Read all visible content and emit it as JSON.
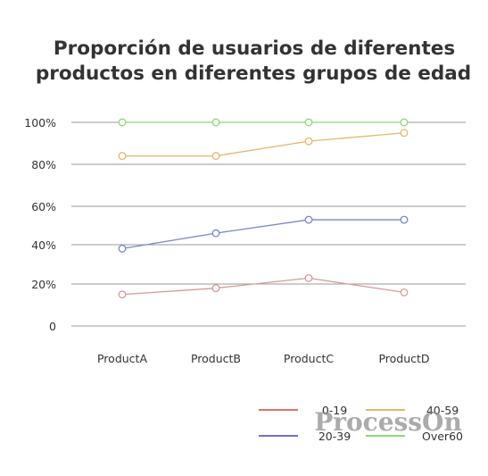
{
  "chart_data": {
    "type": "line",
    "title_lines": [
      "Proporción de usuarios de diferentes",
      "productos en diferentes grupos de edad"
    ],
    "categories": [
      "ProductA",
      "ProductB",
      "ProductC",
      "ProductD"
    ],
    "y_ticks": [
      {
        "value": 0,
        "label": "0"
      },
      {
        "value": 20,
        "label": "20%"
      },
      {
        "value": 40,
        "label": "40%"
      },
      {
        "value": 60,
        "label": "60%"
      },
      {
        "value": 80,
        "label": "80%"
      },
      {
        "value": 100,
        "label": "100%"
      }
    ],
    "ylim": [
      0,
      100
    ],
    "grid": true,
    "legend_position": "bottom-right",
    "series": [
      {
        "name": "0-19",
        "color": "#d99999",
        "legend_color": "#e0726f",
        "values": [
          15,
          18,
          23,
          16
        ]
      },
      {
        "name": "40-59",
        "color": "#e9b46d",
        "legend_color": "#e9b46d",
        "values": [
          84,
          84,
          91,
          95
        ]
      },
      {
        "name": "20-39",
        "color": "#7a86c9",
        "legend_color": "#6a74c4",
        "values": [
          38,
          46,
          53,
          53
        ]
      },
      {
        "name": "Over60",
        "color": "#8fd67a",
        "legend_color": "#8fd67a",
        "values": [
          100,
          100,
          100,
          100
        ]
      }
    ]
  },
  "watermark": "ProcessOn"
}
